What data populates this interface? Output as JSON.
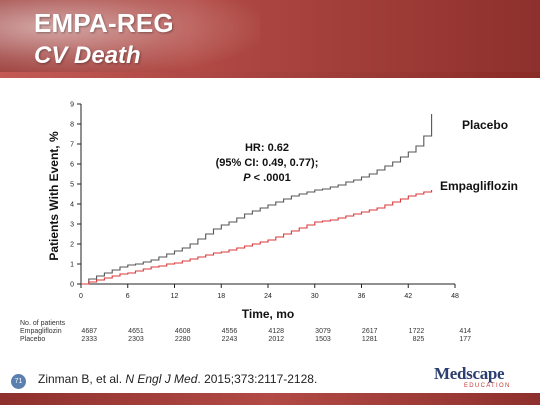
{
  "slide": {
    "title": "EMPA-REG",
    "subtitle": "CV Death",
    "page_number": "71",
    "citation_prefix": "Zinman B, et al. ",
    "citation_journal": "N Engl J Med",
    "citation_suffix": ". 2015;373:2117-2128.",
    "logo_text": "Medscape",
    "logo_sub": "EDUCATION"
  },
  "chart_data": {
    "type": "line",
    "title": "",
    "xlabel": "Time, mo",
    "ylabel": "Patients With Event, %",
    "xlim": [
      0,
      48
    ],
    "ylim": [
      0,
      9
    ],
    "xticks": [
      0,
      6,
      12,
      18,
      24,
      30,
      36,
      42,
      48
    ],
    "yticks": [
      0,
      1,
      2,
      3,
      4,
      5,
      6,
      7,
      8,
      9
    ],
    "grid": false,
    "annotation": {
      "line1": "HR: 0.62",
      "line2": "(95% CI: 0.49, 0.77);",
      "line3_italic": "P",
      "line3_rest": " < .0001"
    },
    "series": [
      {
        "name": "Placebo",
        "color": "#555555",
        "x": [
          0,
          1,
          2,
          3,
          4,
          5,
          6,
          7,
          8,
          9,
          10,
          11,
          12,
          13,
          14,
          15,
          16,
          17,
          18,
          19,
          20,
          21,
          22,
          23,
          24,
          25,
          26,
          27,
          28,
          29,
          30,
          31,
          32,
          33,
          34,
          35,
          36,
          37,
          38,
          39,
          40,
          41,
          42,
          43,
          44,
          45
        ],
        "values": [
          0,
          0.25,
          0.4,
          0.55,
          0.7,
          0.85,
          0.95,
          1.0,
          1.1,
          1.2,
          1.35,
          1.5,
          1.65,
          1.8,
          2.0,
          2.25,
          2.5,
          2.75,
          2.95,
          3.1,
          3.3,
          3.5,
          3.65,
          3.8,
          3.95,
          4.1,
          4.25,
          4.4,
          4.5,
          4.6,
          4.7,
          4.75,
          4.85,
          4.95,
          5.1,
          5.2,
          5.35,
          5.5,
          5.7,
          5.9,
          6.1,
          6.35,
          6.6,
          6.9,
          7.4,
          8.5
        ]
      },
      {
        "name": "Empagliflozin",
        "color": "#d93a3a",
        "x": [
          0,
          1,
          2,
          3,
          4,
          5,
          6,
          7,
          8,
          9,
          10,
          11,
          12,
          13,
          14,
          15,
          16,
          17,
          18,
          19,
          20,
          21,
          22,
          23,
          24,
          25,
          26,
          27,
          28,
          29,
          30,
          31,
          32,
          33,
          34,
          35,
          36,
          37,
          38,
          39,
          40,
          41,
          42,
          43,
          44,
          45
        ],
        "values": [
          0,
          0.1,
          0.2,
          0.3,
          0.4,
          0.5,
          0.55,
          0.65,
          0.75,
          0.85,
          0.9,
          1.0,
          1.05,
          1.15,
          1.25,
          1.35,
          1.45,
          1.55,
          1.6,
          1.7,
          1.8,
          1.9,
          2.0,
          2.1,
          2.2,
          2.35,
          2.5,
          2.65,
          2.8,
          2.95,
          3.1,
          3.15,
          3.2,
          3.3,
          3.4,
          3.5,
          3.6,
          3.7,
          3.8,
          3.95,
          4.1,
          4.25,
          4.4,
          4.5,
          4.6,
          4.7
        ]
      }
    ],
    "risk_table": {
      "heading": "No. of patients",
      "rows": [
        {
          "label": "Empagliflozin",
          "values": [
            "4687",
            "4651",
            "4608",
            "4556",
            "4128",
            "3079",
            "2617",
            "1722",
            "414"
          ]
        },
        {
          "label": "Placebo",
          "values": [
            "2333",
            "2303",
            "2280",
            "2243",
            "2012",
            "1503",
            "1281",
            "825",
            "177"
          ]
        }
      ]
    }
  }
}
